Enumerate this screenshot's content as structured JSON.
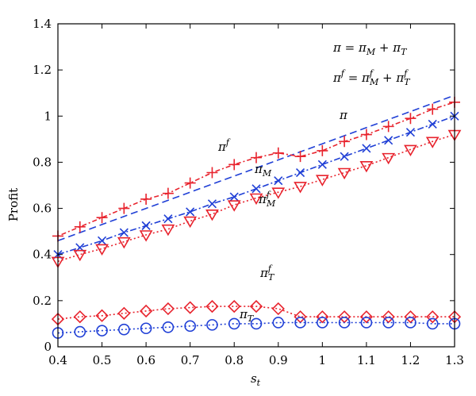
{
  "chart_data": {
    "type": "line",
    "xlabel": "s",
    "xlabel_sub": "t",
    "ylabel": "Profit",
    "xlim": [
      0.4,
      1.3
    ],
    "ylim": [
      0,
      1.4
    ],
    "x_ticks": [
      "0.4",
      "0.5",
      "0.6",
      "0.7",
      "0.8",
      "0.9",
      "1",
      "1.1",
      "1.2",
      "1.3"
    ],
    "y_ticks": [
      "0",
      "0.2",
      "0.4",
      "0.6",
      "0.8",
      "1",
      "1.2",
      "1.4"
    ],
    "grid": false,
    "annotations": {
      "eq1": "π = π_M + π_T",
      "eq2": "π^f = π^f_M + π^f_T",
      "pi": "π",
      "pi_f": "π^f",
      "pi_M": "π_M",
      "pi_M_f": "π^f_M",
      "pi_T_f": "π^f_T",
      "pi_T": "π_T"
    },
    "x": [
      0.4,
      0.45,
      0.5,
      0.55,
      0.6,
      0.65,
      0.7,
      0.75,
      0.8,
      0.85,
      0.9,
      0.95,
      1.0,
      1.05,
      1.1,
      1.15,
      1.2,
      1.25,
      1.3
    ],
    "series": [
      {
        "key": "pi",
        "color": "#1f3fd6",
        "style": "dashed",
        "marker": "none",
        "values": [
          0.46,
          0.495,
          0.53,
          0.565,
          0.6,
          0.635,
          0.67,
          0.705,
          0.74,
          0.775,
          0.81,
          0.845,
          0.88,
          0.915,
          0.95,
          0.985,
          1.02,
          1.055,
          1.09
        ]
      },
      {
        "key": "pi_f",
        "color": "#e8232d",
        "style": "dotdash",
        "marker": "plus",
        "values": [
          0.48,
          0.52,
          0.56,
          0.6,
          0.64,
          0.665,
          0.71,
          0.755,
          0.79,
          0.82,
          0.84,
          0.825,
          0.85,
          0.89,
          0.92,
          0.955,
          0.99,
          1.03,
          1.06
        ]
      },
      {
        "key": "pi_M",
        "color": "#1f3fd6",
        "style": "dashdot",
        "marker": "x",
        "values": [
          0.4,
          0.43,
          0.46,
          0.495,
          0.525,
          0.555,
          0.585,
          0.62,
          0.65,
          0.685,
          0.72,
          0.755,
          0.79,
          0.825,
          0.86,
          0.895,
          0.93,
          0.965,
          1.0
        ]
      },
      {
        "key": "pi_M_f",
        "color": "#e8232d",
        "style": "dotted",
        "marker": "triangle-down",
        "values": [
          0.37,
          0.4,
          0.425,
          0.455,
          0.485,
          0.51,
          0.545,
          0.575,
          0.615,
          0.645,
          0.67,
          0.695,
          0.725,
          0.755,
          0.785,
          0.82,
          0.855,
          0.89,
          0.92
        ]
      },
      {
        "key": "pi_T_f",
        "color": "#e8232d",
        "style": "dotted",
        "marker": "diamond",
        "values": [
          0.12,
          0.13,
          0.135,
          0.145,
          0.155,
          0.165,
          0.17,
          0.175,
          0.175,
          0.175,
          0.165,
          0.13,
          0.13,
          0.13,
          0.13,
          0.13,
          0.13,
          0.13,
          0.13
        ]
      },
      {
        "key": "pi_T",
        "color": "#1f3fd6",
        "style": "dotted",
        "marker": "circle",
        "values": [
          0.06,
          0.065,
          0.07,
          0.075,
          0.08,
          0.085,
          0.09,
          0.095,
          0.1,
          0.1,
          0.105,
          0.105,
          0.105,
          0.105,
          0.105,
          0.105,
          0.105,
          0.1,
          0.1
        ]
      }
    ]
  }
}
